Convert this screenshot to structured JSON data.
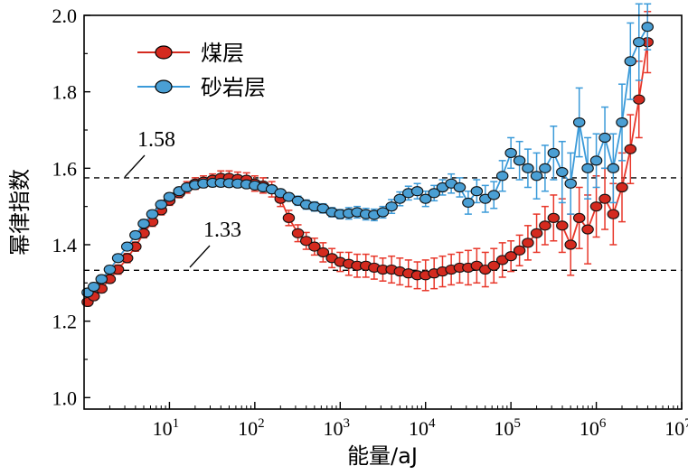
{
  "chart_data": {
    "type": "scatter",
    "xlabel": "能量/aJ",
    "ylabel": "幂律指数",
    "xscale": "log",
    "xlim": [
      1,
      10000000
    ],
    "ylim": [
      0.97,
      2.0
    ],
    "yticks": [
      "1.0",
      "1.2",
      "1.4",
      "1.6",
      "1.8",
      "2.0"
    ],
    "xticks": [
      {
        "base": "10",
        "exp": "1"
      },
      {
        "base": "10",
        "exp": "2"
      },
      {
        "base": "10",
        "exp": "3"
      },
      {
        "base": "10",
        "exp": "4"
      },
      {
        "base": "10",
        "exp": "5"
      },
      {
        "base": "10",
        "exp": "6"
      },
      {
        "base": "10",
        "exp": "7"
      }
    ],
    "reference_lines": [
      {
        "y": 1.575,
        "label": "1.58"
      },
      {
        "y": 1.333,
        "label": "1.33"
      }
    ],
    "legend_position": "top-left",
    "series": [
      {
        "name": "煤层",
        "color": "#d42a1f",
        "error_color": "#e8372a",
        "points": [
          [
            1.1,
            1.25,
            0.01
          ],
          [
            1.3,
            1.265,
            0.01
          ],
          [
            1.6,
            1.285,
            0.01
          ],
          [
            2.0,
            1.31,
            0.01
          ],
          [
            2.5,
            1.335,
            0.012
          ],
          [
            3.2,
            1.365,
            0.012
          ],
          [
            4,
            1.395,
            0.012
          ],
          [
            5,
            1.43,
            0.012
          ],
          [
            6.3,
            1.46,
            0.012
          ],
          [
            8,
            1.49,
            0.012
          ],
          [
            10,
            1.515,
            0.012
          ],
          [
            13,
            1.535,
            0.012
          ],
          [
            16,
            1.55,
            0.015
          ],
          [
            20,
            1.56,
            0.015
          ],
          [
            25,
            1.565,
            0.015
          ],
          [
            32,
            1.57,
            0.015
          ],
          [
            40,
            1.575,
            0.018
          ],
          [
            50,
            1.575,
            0.018
          ],
          [
            63,
            1.572,
            0.018
          ],
          [
            80,
            1.57,
            0.018
          ],
          [
            100,
            1.56,
            0.02
          ],
          [
            125,
            1.555,
            0.02
          ],
          [
            158,
            1.545,
            0.02
          ],
          [
            200,
            1.52,
            0.02
          ],
          [
            250,
            1.47,
            0.02
          ],
          [
            320,
            1.43,
            0.022
          ],
          [
            400,
            1.41,
            0.022
          ],
          [
            500,
            1.395,
            0.022
          ],
          [
            630,
            1.38,
            0.025
          ],
          [
            800,
            1.365,
            0.025
          ],
          [
            1000,
            1.355,
            0.025
          ],
          [
            1260,
            1.35,
            0.03
          ],
          [
            1580,
            1.345,
            0.03
          ],
          [
            2000,
            1.345,
            0.03
          ],
          [
            2500,
            1.34,
            0.03
          ],
          [
            3160,
            1.335,
            0.03
          ],
          [
            4000,
            1.335,
            0.035
          ],
          [
            5000,
            1.33,
            0.035
          ],
          [
            6300,
            1.325,
            0.035
          ],
          [
            8000,
            1.32,
            0.035
          ],
          [
            10000,
            1.32,
            0.04
          ],
          [
            12600,
            1.325,
            0.04
          ],
          [
            15800,
            1.33,
            0.04
          ],
          [
            20000,
            1.335,
            0.04
          ],
          [
            25100,
            1.34,
            0.04
          ],
          [
            31600,
            1.34,
            0.045
          ],
          [
            39800,
            1.345,
            0.045
          ],
          [
            50100,
            1.335,
            0.045
          ],
          [
            63100,
            1.345,
            0.045
          ],
          [
            79400,
            1.36,
            0.045
          ],
          [
            100000,
            1.37,
            0.04
          ],
          [
            126000,
            1.385,
            0.04
          ],
          [
            158000,
            1.405,
            0.045
          ],
          [
            200000,
            1.43,
            0.05
          ],
          [
            251000,
            1.45,
            0.05
          ],
          [
            316000,
            1.47,
            0.06
          ],
          [
            398000,
            1.45,
            0.07
          ],
          [
            501000,
            1.4,
            0.08
          ],
          [
            631000,
            1.47,
            0.08
          ],
          [
            794000,
            1.44,
            0.09
          ],
          [
            1000000,
            1.5,
            0.08
          ],
          [
            1260000,
            1.52,
            0.08
          ],
          [
            1580000,
            1.48,
            0.08
          ],
          [
            2000000,
            1.55,
            0.09
          ],
          [
            2510000,
            1.65,
            0.09
          ],
          [
            3160000,
            1.78,
            0.1
          ],
          [
            3980000,
            1.93,
            0.08
          ]
        ]
      },
      {
        "name": "砂岩层",
        "color": "#4a9fd4",
        "error_color": "#3a9ad9",
        "points": [
          [
            1.1,
            1.275,
            0.01
          ],
          [
            1.3,
            1.29,
            0.01
          ],
          [
            1.6,
            1.31,
            0.01
          ],
          [
            2.0,
            1.335,
            0.01
          ],
          [
            2.5,
            1.365,
            0.01
          ],
          [
            3.2,
            1.395,
            0.01
          ],
          [
            4,
            1.425,
            0.01
          ],
          [
            5,
            1.455,
            0.01
          ],
          [
            6.3,
            1.48,
            0.01
          ],
          [
            8,
            1.505,
            0.01
          ],
          [
            10,
            1.525,
            0.01
          ],
          [
            13,
            1.54,
            0.01
          ],
          [
            16,
            1.55,
            0.01
          ],
          [
            20,
            1.556,
            0.01
          ],
          [
            25,
            1.56,
            0.01
          ],
          [
            32,
            1.562,
            0.01
          ],
          [
            40,
            1.562,
            0.01
          ],
          [
            50,
            1.561,
            0.01
          ],
          [
            63,
            1.56,
            0.01
          ],
          [
            80,
            1.558,
            0.01
          ],
          [
            100,
            1.555,
            0.01
          ],
          [
            125,
            1.55,
            0.01
          ],
          [
            158,
            1.545,
            0.01
          ],
          [
            200,
            1.535,
            0.01
          ],
          [
            250,
            1.525,
            0.01
          ],
          [
            320,
            1.515,
            0.012
          ],
          [
            400,
            1.505,
            0.012
          ],
          [
            500,
            1.5,
            0.012
          ],
          [
            630,
            1.495,
            0.012
          ],
          [
            800,
            1.485,
            0.012
          ],
          [
            1000,
            1.48,
            0.012
          ],
          [
            1260,
            1.482,
            0.015
          ],
          [
            1580,
            1.485,
            0.015
          ],
          [
            2000,
            1.48,
            0.015
          ],
          [
            2500,
            1.478,
            0.015
          ],
          [
            3160,
            1.485,
            0.015
          ],
          [
            4000,
            1.5,
            0.018
          ],
          [
            5000,
            1.52,
            0.018
          ],
          [
            6300,
            1.535,
            0.018
          ],
          [
            8000,
            1.54,
            0.02
          ],
          [
            10000,
            1.52,
            0.02
          ],
          [
            12600,
            1.535,
            0.02
          ],
          [
            15800,
            1.55,
            0.02
          ],
          [
            20000,
            1.56,
            0.025
          ],
          [
            25100,
            1.55,
            0.025
          ],
          [
            31600,
            1.51,
            0.03
          ],
          [
            39800,
            1.54,
            0.03
          ],
          [
            50100,
            1.52,
            0.035
          ],
          [
            63100,
            1.53,
            0.035
          ],
          [
            79400,
            1.58,
            0.04
          ],
          [
            100000,
            1.64,
            0.04
          ],
          [
            126000,
            1.62,
            0.05
          ],
          [
            158000,
            1.6,
            0.05
          ],
          [
            200000,
            1.58,
            0.06
          ],
          [
            251000,
            1.6,
            0.06
          ],
          [
            316000,
            1.64,
            0.07
          ],
          [
            398000,
            1.59,
            0.08
          ],
          [
            501000,
            1.56,
            0.08
          ],
          [
            631000,
            1.72,
            0.09
          ],
          [
            794000,
            1.6,
            0.08
          ],
          [
            1000000,
            1.62,
            0.07
          ],
          [
            1260000,
            1.68,
            0.08
          ],
          [
            1580000,
            1.6,
            0.09
          ],
          [
            2000000,
            1.72,
            0.1
          ],
          [
            2510000,
            1.88,
            0.1
          ],
          [
            3160000,
            1.93,
            0.1
          ],
          [
            3980000,
            1.97,
            0.06
          ]
        ]
      }
    ]
  }
}
